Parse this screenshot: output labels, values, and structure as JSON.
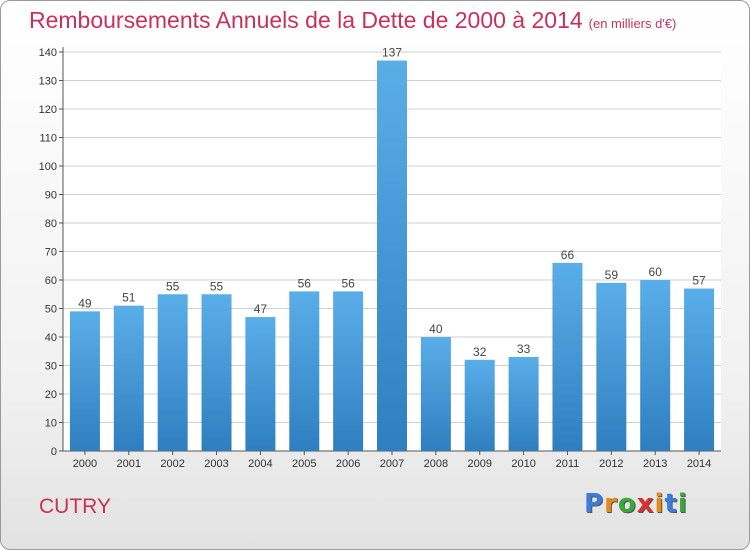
{
  "title": "Remboursements Annuels de la Dette de 2000 à 2014",
  "subtitle": "(en milliers d'€)",
  "commune": "CUTRY",
  "logo": {
    "letters": [
      "P",
      "r",
      "o",
      "x",
      "i",
      "t",
      "i"
    ],
    "colors": [
      "#3b7dd8",
      "#e8891a",
      "#3aa83a",
      "#d6322e",
      "#e8891a",
      "#3b7dd8",
      "#3aa83a"
    ]
  },
  "colors": {
    "bar_top": "#5aaee8",
    "bar_bottom": "#2f7fc0",
    "title": "#c8325a"
  },
  "chart_data": {
    "type": "bar",
    "categories": [
      "2000",
      "2001",
      "2002",
      "2003",
      "2004",
      "2005",
      "2006",
      "2007",
      "2008",
      "2009",
      "2010",
      "2011",
      "2012",
      "2013",
      "2014"
    ],
    "values": [
      49,
      51,
      55,
      55,
      47,
      56,
      56,
      137,
      40,
      32,
      33,
      66,
      59,
      60,
      57
    ],
    "yticks": [
      0,
      10,
      20,
      30,
      40,
      50,
      60,
      70,
      80,
      90,
      100,
      110,
      120,
      130,
      140
    ],
    "ylim": [
      0,
      140
    ],
    "grid": true,
    "title": "Remboursements Annuels de la Dette de 2000 à 2014",
    "ylabel": "",
    "xlabel": ""
  }
}
